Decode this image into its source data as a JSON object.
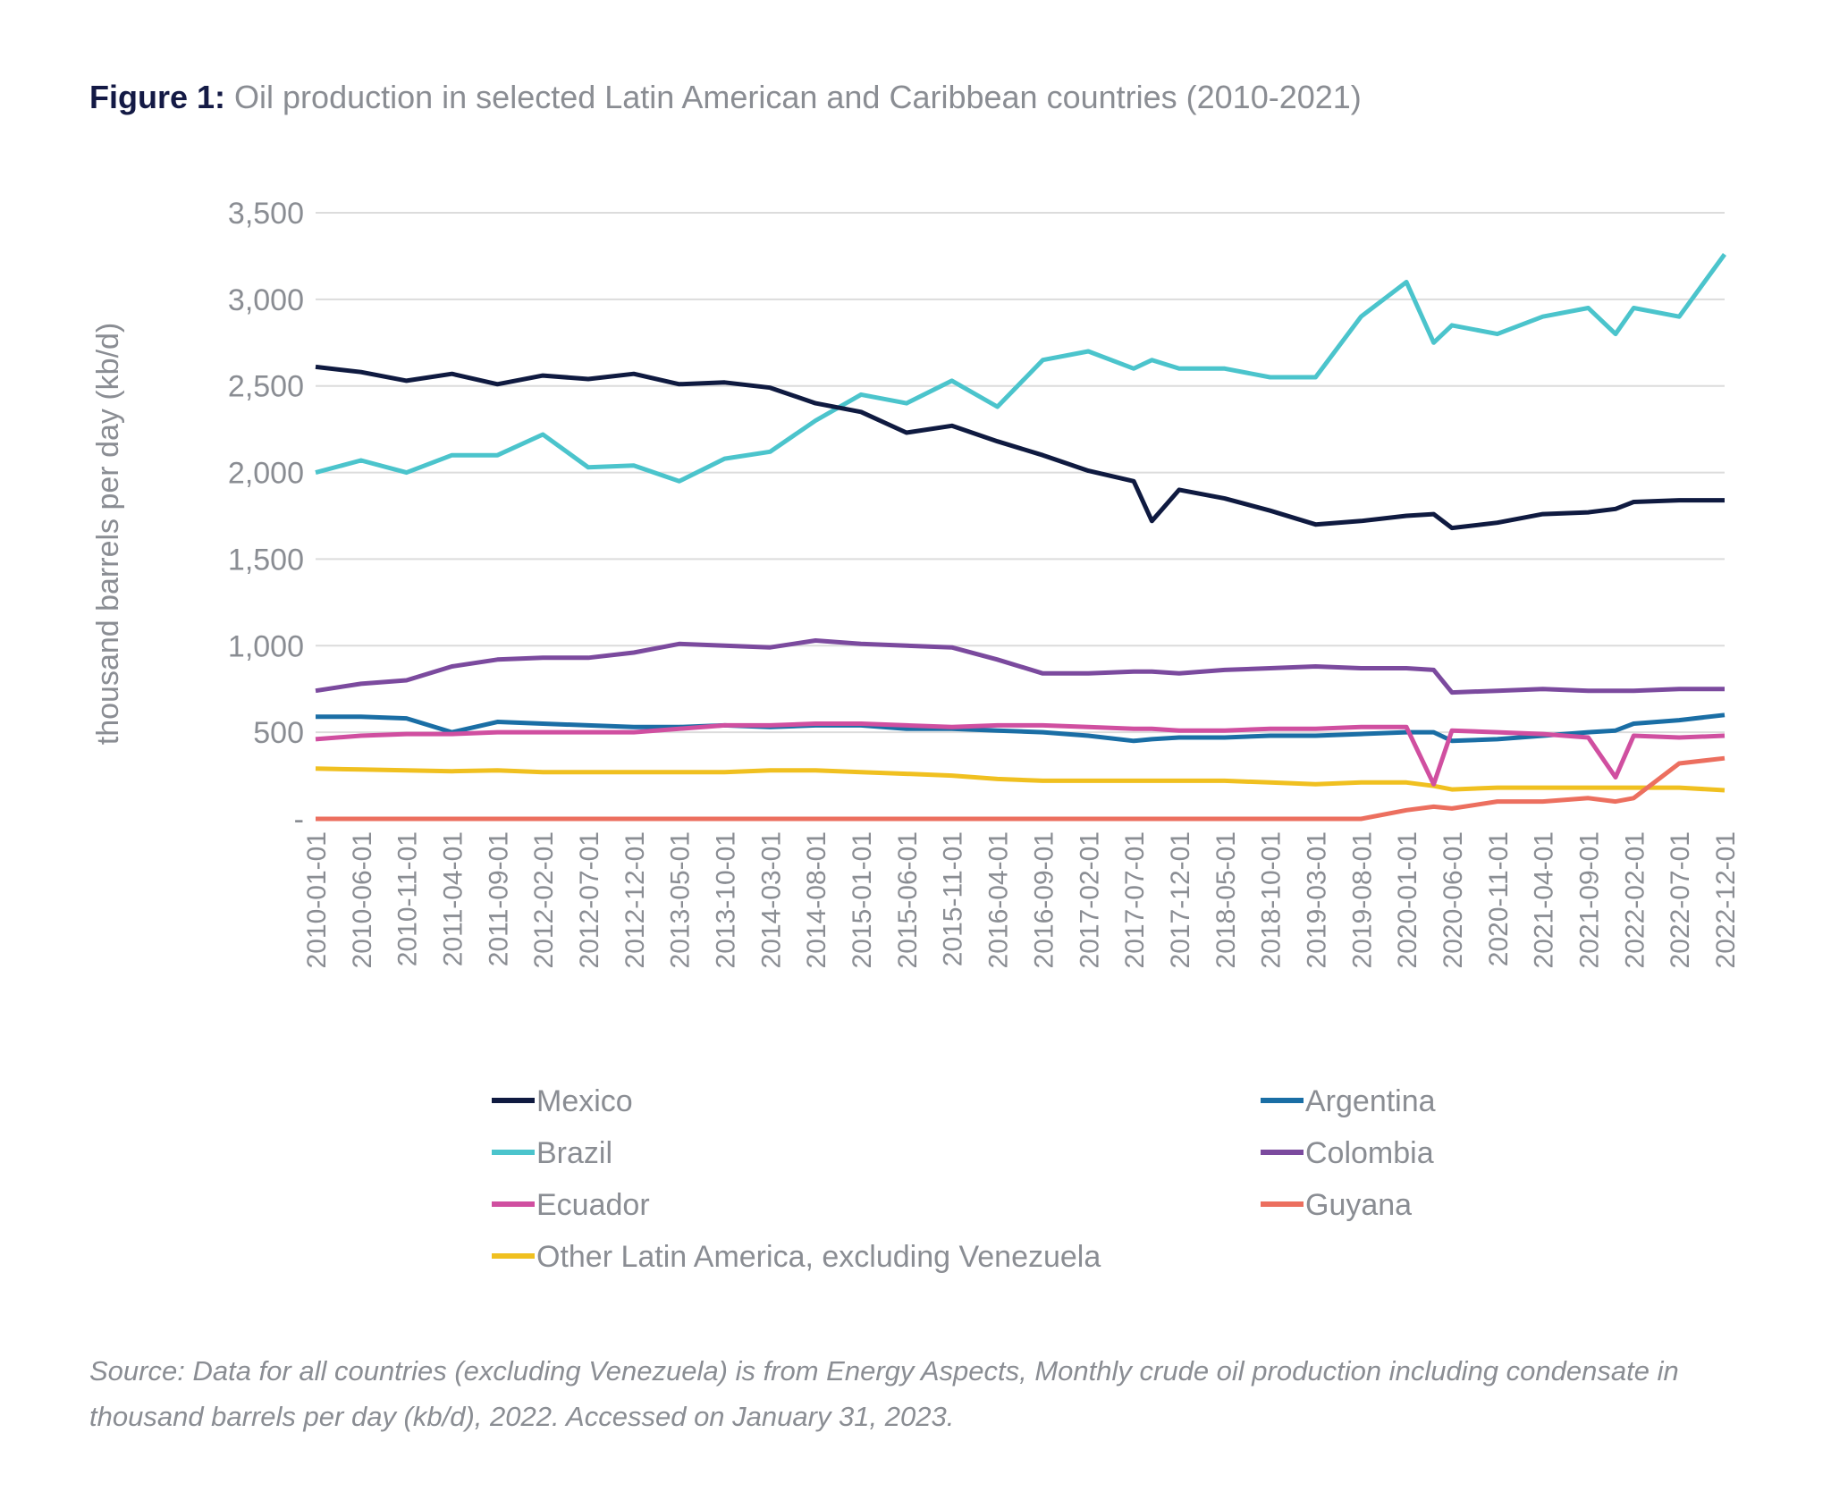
{
  "title": {
    "prefix": "Figure 1:",
    "text": "Oil production in selected Latin American and Caribbean countries (2010-2021)"
  },
  "source": "Source: Data for all countries (excluding Venezuela) is from Energy Aspects, Monthly crude oil production including condensate in thousand barrels per day (kb/d), 2022. Accessed on January 31, 2023.",
  "chart_data": {
    "type": "line",
    "title": "Oil production in selected Latin American and Caribbean countries (2010-2021)",
    "ylabel": "thousand barrels per day (kb/d)",
    "xlabel": "",
    "ylim": [
      0,
      3500
    ],
    "yticks": [
      0,
      500,
      1000,
      1500,
      2000,
      2500,
      3000,
      3500
    ],
    "ytick_labels": [
      "-",
      "500",
      "1,000",
      "1,500",
      "2,000",
      "2,500",
      "3,000",
      "3,500"
    ],
    "grid": "horizontal",
    "legend": "bottom",
    "xtick_labels": [
      "2010-01-01",
      "2010-06-01",
      "2010-11-01",
      "2011-04-01",
      "2011-09-01",
      "2012-02-01",
      "2012-07-01",
      "2012-12-01",
      "2013-05-01",
      "2013-10-01",
      "2014-03-01",
      "2014-08-01",
      "2015-01-01",
      "2015-06-01",
      "2015-11-01",
      "2016-04-01",
      "2016-09-01",
      "2017-02-01",
      "2017-07-01",
      "2017-12-01",
      "2018-05-01",
      "2018-10-01",
      "2019-03-01",
      "2019-08-01",
      "2020-01-01",
      "2020-06-01",
      "2020-11-01",
      "2021-04-01",
      "2021-09-01",
      "2022-02-01",
      "2022-07-01",
      "2022-12-01"
    ],
    "x": [
      "2010-01-01",
      "2010-06-01",
      "2010-11-01",
      "2011-04-01",
      "2011-09-01",
      "2012-02-01",
      "2012-07-01",
      "2012-12-01",
      "2013-05-01",
      "2013-10-01",
      "2014-03-01",
      "2014-08-01",
      "2015-01-01",
      "2015-06-01",
      "2015-11-01",
      "2016-04-01",
      "2016-09-01",
      "2017-02-01",
      "2017-07-01",
      "2017-09-01",
      "2017-12-01",
      "2018-05-01",
      "2018-10-01",
      "2019-03-01",
      "2019-08-01",
      "2020-01-01",
      "2020-04-01",
      "2020-06-01",
      "2020-11-01",
      "2021-04-01",
      "2021-09-01",
      "2021-12-01",
      "2022-02-01",
      "2022-07-01",
      "2022-12-01"
    ],
    "series": [
      {
        "name": "Mexico",
        "color": "#0f1a40",
        "values": [
          2610,
          2580,
          2530,
          2570,
          2510,
          2560,
          2540,
          2570,
          2510,
          2520,
          2490,
          2400,
          2350,
          2230,
          2270,
          2180,
          2100,
          2010,
          1950,
          1720,
          1900,
          1850,
          1780,
          1700,
          1720,
          1750,
          1760,
          1680,
          1710,
          1760,
          1770,
          1790,
          1830,
          1840,
          1840
        ]
      },
      {
        "name": "Argentina",
        "color": "#1a6ea5",
        "values": [
          590,
          590,
          580,
          500,
          560,
          550,
          540,
          530,
          530,
          540,
          530,
          540,
          540,
          520,
          520,
          510,
          500,
          480,
          450,
          460,
          470,
          470,
          480,
          480,
          490,
          500,
          500,
          450,
          460,
          480,
          500,
          510,
          550,
          570,
          600
        ]
      },
      {
        "name": "Brazil",
        "color": "#4bc4cc",
        "values": [
          2000,
          2070,
          2000,
          2100,
          2100,
          2220,
          2030,
          2040,
          1950,
          2080,
          2120,
          2300,
          2450,
          2400,
          2530,
          2380,
          2650,
          2700,
          2600,
          2650,
          2600,
          2600,
          2550,
          2550,
          2900,
          3100,
          2750,
          2850,
          2800,
          2900,
          2950,
          2800,
          2950,
          2900,
          3260
        ]
      },
      {
        "name": "Colombia",
        "color": "#7b4a9e",
        "values": [
          740,
          780,
          800,
          880,
          920,
          930,
          930,
          960,
          1010,
          1000,
          990,
          1030,
          1010,
          1000,
          990,
          920,
          840,
          840,
          850,
          850,
          840,
          860,
          870,
          880,
          870,
          870,
          860,
          730,
          740,
          750,
          740,
          740,
          740,
          750,
          750
        ]
      },
      {
        "name": "Ecuador",
        "color": "#d04fa0",
        "values": [
          460,
          480,
          490,
          490,
          500,
          500,
          500,
          500,
          520,
          540,
          540,
          550,
          550,
          540,
          530,
          540,
          540,
          530,
          520,
          520,
          510,
          510,
          520,
          520,
          530,
          530,
          200,
          510,
          500,
          490,
          470,
          240,
          480,
          470,
          480
        ]
      },
      {
        "name": "Guyana",
        "color": "#ec6f5f",
        "values": [
          0,
          0,
          0,
          0,
          0,
          0,
          0,
          0,
          0,
          0,
          0,
          0,
          0,
          0,
          0,
          0,
          0,
          0,
          0,
          0,
          0,
          0,
          0,
          0,
          0,
          50,
          70,
          60,
          100,
          100,
          120,
          100,
          120,
          320,
          350
        ]
      },
      {
        "name": "Other Latin America, excluding Venezuela",
        "color": "#f0c020",
        "values": [
          290,
          285,
          280,
          275,
          280,
          270,
          270,
          270,
          270,
          270,
          280,
          280,
          270,
          260,
          250,
          230,
          220,
          220,
          220,
          220,
          220,
          220,
          210,
          200,
          210,
          210,
          190,
          170,
          180,
          180,
          180,
          180,
          180,
          180,
          165
        ]
      }
    ]
  }
}
